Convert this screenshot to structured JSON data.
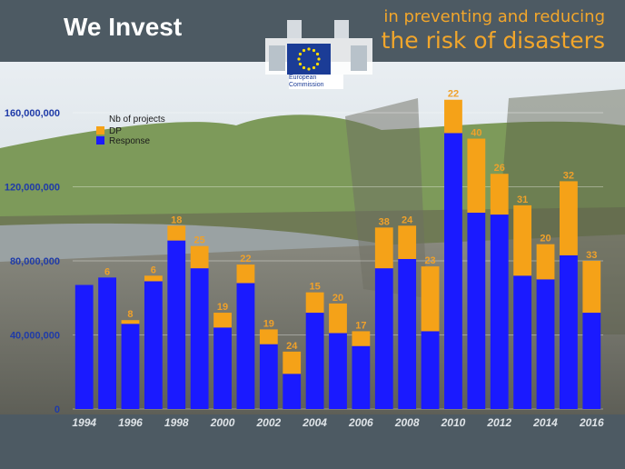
{
  "header": {
    "title": "We Invest",
    "tagline_line1": "in preventing and reducing",
    "tagline_line2": "the risk of disasters",
    "logo_text_line1": "European",
    "logo_text_line2": "Commission"
  },
  "colors": {
    "response": "#1a1aff",
    "dp": "#f5a218",
    "accent": "#f2a62b",
    "background": "#4d5a63"
  },
  "chart_data": {
    "type": "bar",
    "stacked": true,
    "categories": [
      "1994",
      "1995",
      "1996",
      "1997",
      "1998",
      "1999",
      "2000",
      "2001",
      "2002",
      "2003",
      "2004",
      "2005",
      "2006",
      "2007",
      "2008",
      "2009",
      "2010",
      "2011",
      "2012",
      "2013",
      "2014",
      "2015",
      "2016"
    ],
    "x_tick_labels": [
      "1994",
      "1996",
      "1998",
      "2000",
      "2002",
      "2004",
      "2006",
      "2008",
      "2010",
      "2012",
      "2014",
      "2016"
    ],
    "series": [
      {
        "name": "Response",
        "color": "#1a1aff",
        "values": [
          67000000,
          71000000,
          46000000,
          69000000,
          91000000,
          76000000,
          44000000,
          68000000,
          35000000,
          19000000,
          52000000,
          41000000,
          34000000,
          76000000,
          81000000,
          42000000,
          149000000,
          106000000,
          105000000,
          72000000,
          70000000,
          83000000,
          52000000
        ]
      },
      {
        "name": "DP",
        "color": "#f5a218",
        "values": [
          0,
          0,
          2000000,
          3000000,
          8000000,
          12000000,
          8000000,
          10000000,
          8000000,
          12000000,
          11000000,
          16000000,
          8000000,
          22000000,
          18000000,
          35000000,
          18000000,
          40000000,
          22000000,
          38000000,
          19000000,
          40000000,
          28000000
        ]
      }
    ],
    "nb_of_projects": [
      "",
      "6",
      "8",
      "6",
      "18",
      "25",
      "19",
      "22",
      "19",
      "24",
      "15",
      "20",
      "17",
      "38",
      "24",
      "23",
      "22",
      "40",
      "26",
      "31",
      "20",
      "32",
      "33"
    ],
    "legend": {
      "entries": [
        "Nb of projects",
        "DP",
        "Response"
      ],
      "placement": "top-left"
    },
    "y_tick_labels": [
      "0",
      "40,000,000",
      "80,000,000",
      "120,000,000",
      "160,000,000"
    ],
    "y_tick_values": [
      0,
      40000000,
      80000000,
      120000000,
      160000000
    ],
    "ylim": [
      0,
      160000000
    ],
    "grid": true,
    "title": "",
    "xlabel": "",
    "ylabel": ""
  }
}
